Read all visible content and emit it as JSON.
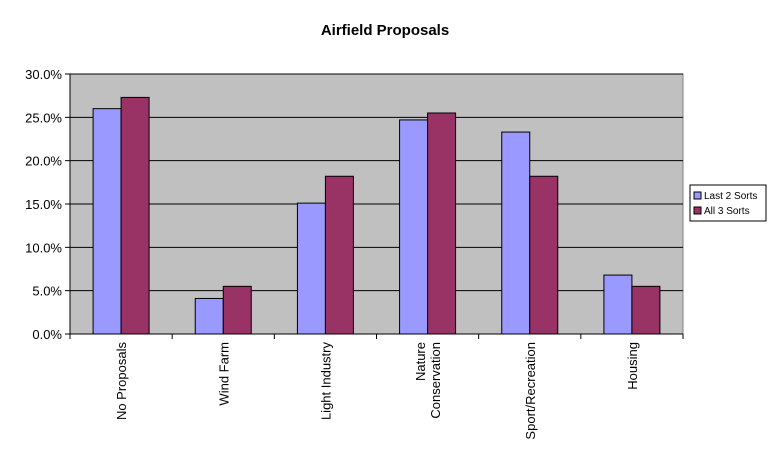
{
  "chart_data": {
    "type": "bar",
    "title": "Airfield Proposals",
    "xlabel": "",
    "ylabel": "",
    "ylim": [
      0,
      0.3
    ],
    "yticks": [
      0,
      0.05,
      0.1,
      0.15,
      0.2,
      0.25,
      0.3
    ],
    "ytick_labels": [
      "0.0%",
      "5.0%",
      "10.0%",
      "15.0%",
      "20.0%",
      "25.0%",
      "30.0%"
    ],
    "grid": true,
    "legend_position": "right",
    "categories": [
      [
        "No Proposals"
      ],
      [
        "Wind Farm"
      ],
      [
        "Light Industry"
      ],
      [
        "Nature",
        "Conservation"
      ],
      [
        "Sport/Recreation"
      ],
      [
        "Housing"
      ]
    ],
    "series": [
      {
        "name": "Last 2 Sorts",
        "color": "#9999ff",
        "values": [
          0.26,
          0.041,
          0.151,
          0.247,
          0.233,
          0.068
        ]
      },
      {
        "name": "All 3 Sorts",
        "color": "#993366",
        "values": [
          0.273,
          0.055,
          0.182,
          0.255,
          0.182,
          0.055
        ]
      }
    ],
    "colors": {
      "plot_background": "#c0c0c0",
      "gridline": "#000000"
    }
  }
}
